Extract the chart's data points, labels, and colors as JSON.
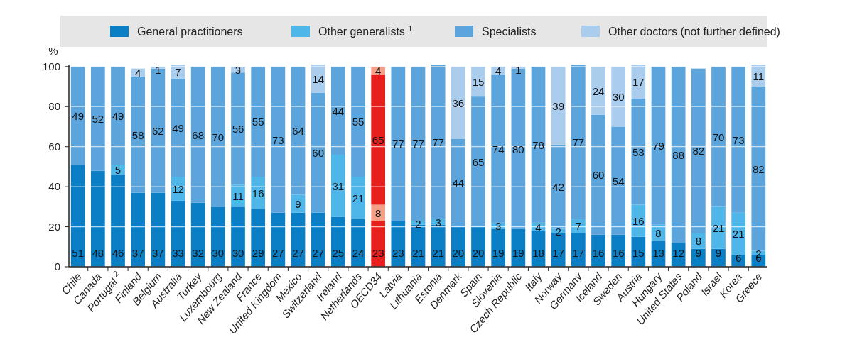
{
  "chart_data": {
    "type": "bar",
    "stacked": true,
    "ylabel": "%",
    "ylim": [
      0,
      101
    ],
    "yticks": [
      0,
      20,
      40,
      60,
      80,
      100
    ],
    "grid": "y",
    "legend": "top",
    "data_labels": true,
    "categories": [
      "Chile",
      "Canada",
      "Portugal $^{2}$",
      "Finland",
      "Belgium",
      "Australia",
      "Turkey",
      "Luxembourg",
      "New Zealand",
      "France",
      "United Kingdom",
      "Mexico",
      "Switzerland",
      "Ireland",
      "Netherlands",
      "OECD34",
      "Latvia",
      "Lithuania",
      "Estonia",
      "Denmark",
      "Spain",
      "Slovenia",
      "Czech Republic",
      "Italy",
      "Norway",
      "Germany",
      "Iceland",
      "Sweden",
      "Austria",
      "Hungary",
      "United States",
      "Poland",
      "Israel",
      "Korea",
      "Greece"
    ],
    "series": [
      {
        "name": "General practitioners",
        "color": "#0a7fc5",
        "colors": [
          "#0a7fc5",
          "#0a7fc5",
          "#0a7fc5",
          "#0a7fc5",
          "#0a7fc5",
          "#0a7fc5",
          "#0a7fc5",
          "#0a7fc5",
          "#0a7fc5",
          "#0a7fc5",
          "#0a7fc5",
          "#0a7fc5",
          "#0a7fc5",
          "#0a7fc5",
          "#0a7fc5",
          "#e8201d",
          "#0a7fc5",
          "#0a7fc5",
          "#0a7fc5",
          "#0a7fc5",
          "#0a7fc5",
          "#0a7fc5",
          "#0a7fc5",
          "#0a7fc5",
          "#0a7fc5",
          "#0a7fc5",
          "#0a7fc5",
          "#0a7fc5",
          "#0a7fc5",
          "#0a7fc5",
          "#0a7fc5",
          "#0a7fc5",
          "#0a7fc5",
          "#0a7fc5",
          "#0a7fc5"
        ],
        "values": [
          51,
          48,
          46,
          37,
          37,
          33,
          32,
          30,
          30,
          29,
          27,
          27,
          27,
          25,
          24,
          23,
          23,
          21,
          21,
          20,
          20,
          19,
          19,
          18,
          17,
          17,
          16,
          16,
          15,
          13,
          12,
          9,
          9,
          6,
          6
        ]
      },
      {
        "name": "Other generalists $^{1}$",
        "color": "#4fb6ea",
        "colors": [
          null,
          null,
          "#4fb6ea",
          null,
          null,
          "#4fb6ea",
          null,
          null,
          "#4fb6ea",
          "#4fb6ea",
          null,
          "#4fb6ea",
          null,
          "#4fb6ea",
          "#4fb6ea",
          "#f4a088",
          null,
          "#4fb6ea",
          "#4fb6ea",
          null,
          null,
          "#4fb6ea",
          null,
          "#4fb6ea",
          "#4fb6ea",
          "#4fb6ea",
          null,
          null,
          "#4fb6ea",
          "#4fb6ea",
          null,
          "#4fb6ea",
          "#4fb6ea",
          "#4fb6ea",
          "#4fb6ea"
        ],
        "values": [
          null,
          null,
          5,
          null,
          null,
          12,
          null,
          null,
          11,
          16,
          null,
          9,
          null,
          31,
          21,
          8,
          null,
          2,
          3,
          null,
          null,
          3,
          null,
          4,
          2,
          7,
          null,
          null,
          16,
          8,
          null,
          8,
          21,
          21,
          2
        ]
      },
      {
        "name": "Specialists",
        "color": "#5ba5dc",
        "colors": [
          "#5ba5dc",
          "#5ba5dc",
          "#5ba5dc",
          "#5ba5dc",
          "#5ba5dc",
          "#5ba5dc",
          "#5ba5dc",
          "#5ba5dc",
          "#5ba5dc",
          "#5ba5dc",
          "#5ba5dc",
          "#5ba5dc",
          "#5ba5dc",
          "#5ba5dc",
          "#5ba5dc",
          "#e8201d",
          "#5ba5dc",
          "#5ba5dc",
          "#5ba5dc",
          "#5ba5dc",
          "#5ba5dc",
          "#5ba5dc",
          "#5ba5dc",
          "#5ba5dc",
          "#5ba5dc",
          "#5ba5dc",
          "#5ba5dc",
          "#5ba5dc",
          "#5ba5dc",
          "#5ba5dc",
          "#5ba5dc",
          "#5ba5dc",
          "#5ba5dc",
          "#5ba5dc",
          "#5ba5dc"
        ],
        "values": [
          49,
          52,
          49,
          58,
          62,
          49,
          68,
          70,
          56,
          55,
          73,
          64,
          60,
          44,
          55,
          65,
          77,
          77,
          77,
          44,
          65,
          74,
          80,
          78,
          42,
          77,
          60,
          54,
          53,
          79,
          88,
          82,
          70,
          73,
          82
        ]
      },
      {
        "name": "Other doctors (not further defined)",
        "color": "#aacdee",
        "colors": [
          null,
          null,
          null,
          "#aacdee",
          "#aacdee",
          "#aacdee",
          null,
          null,
          "#aacdee",
          null,
          null,
          null,
          "#aacdee",
          null,
          null,
          "#f4a088",
          null,
          null,
          null,
          "#aacdee",
          "#aacdee",
          "#aacdee",
          "#aacdee",
          null,
          "#aacdee",
          null,
          "#aacdee",
          "#aacdee",
          "#aacdee",
          null,
          null,
          null,
          null,
          null,
          "#aacdee"
        ],
        "values": [
          null,
          null,
          null,
          4,
          1,
          7,
          null,
          null,
          3,
          null,
          null,
          null,
          14,
          null,
          null,
          4,
          null,
          null,
          null,
          36,
          15,
          4,
          1,
          null,
          39,
          null,
          24,
          30,
          17,
          null,
          null,
          null,
          null,
          null,
          11
        ]
      }
    ]
  }
}
